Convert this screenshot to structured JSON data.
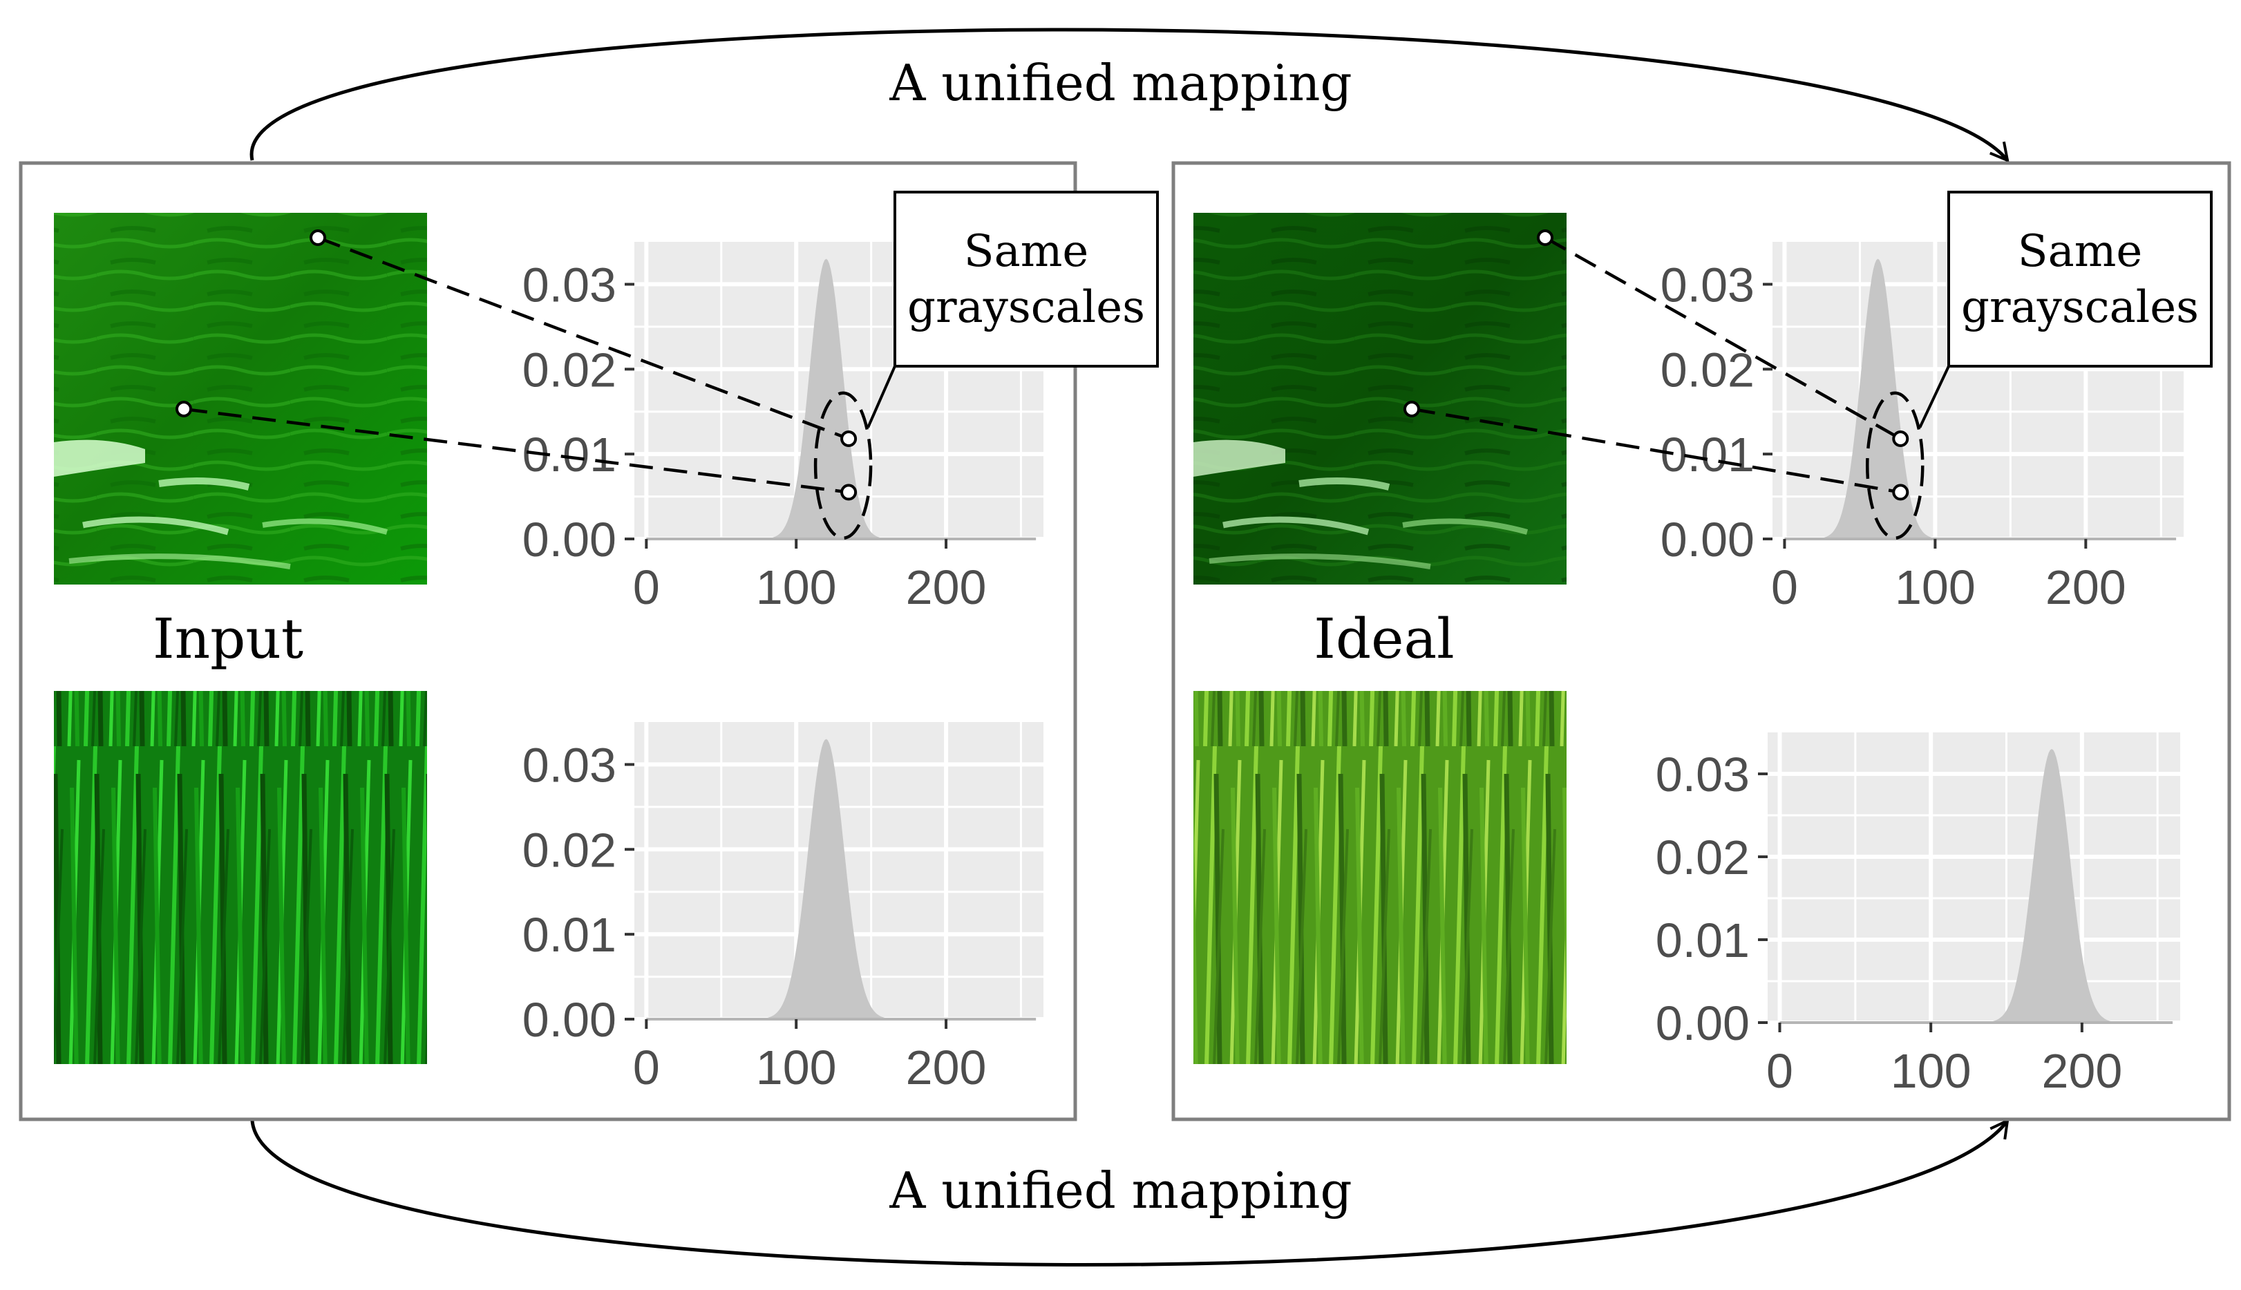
{
  "diagram": {
    "top_arrow_label": "A unified mapping",
    "bottom_arrow_label": "A unified mapping",
    "callout_label_line1": "Same",
    "callout_label_line2": "grayscales",
    "input_panel_label": "Input",
    "ideal_panel_label": "Ideal"
  },
  "colors": {
    "histogram_fill": "#c6c6c6",
    "plot_background": "#ebebeb",
    "grid": "#ffffff",
    "tick_text": "#4d4d4d",
    "frame": "#7f7f7f"
  },
  "chart_data": [
    {
      "type": "area",
      "panel": "input-top",
      "x_ticks": [
        "0",
        "100",
        "200"
      ],
      "y_ticks": [
        "0.00",
        "0.01",
        "0.02",
        "0.03"
      ],
      "xlim": [
        -8,
        265
      ],
      "ylim": [
        0,
        0.035
      ],
      "series": [
        {
          "mean": 120,
          "sd": 11,
          "peak": 0.033
        }
      ],
      "markers": [
        [
          135,
          0.0118
        ],
        [
          135,
          0.0055
        ]
      ]
    },
    {
      "type": "area",
      "panel": "input-bottom",
      "x_ticks": [
        "0",
        "100",
        "200"
      ],
      "y_ticks": [
        "0.00",
        "0.01",
        "0.02",
        "0.03"
      ],
      "xlim": [
        -8,
        265
      ],
      "ylim": [
        0,
        0.035
      ],
      "series": [
        {
          "mean": 120,
          "sd": 12,
          "peak": 0.033
        }
      ]
    },
    {
      "type": "area",
      "panel": "ideal-top",
      "x_ticks": [
        "0",
        "100",
        "200"
      ],
      "y_ticks": [
        "0.00",
        "0.01",
        "0.02",
        "0.03"
      ],
      "xlim": [
        -8,
        265
      ],
      "ylim": [
        0,
        0.035
      ],
      "series": [
        {
          "mean": 62,
          "sd": 11,
          "peak": 0.033
        }
      ],
      "markers": [
        [
          77,
          0.0118
        ],
        [
          77,
          0.0055
        ]
      ]
    },
    {
      "type": "area",
      "panel": "ideal-bottom",
      "x_ticks": [
        "0",
        "100",
        "200"
      ],
      "y_ticks": [
        "0.00",
        "0.01",
        "0.02",
        "0.03"
      ],
      "xlim": [
        -8,
        265
      ],
      "ylim": [
        0,
        0.035
      ],
      "series": [
        {
          "mean": 180,
          "sd": 12,
          "peak": 0.033
        }
      ]
    }
  ]
}
